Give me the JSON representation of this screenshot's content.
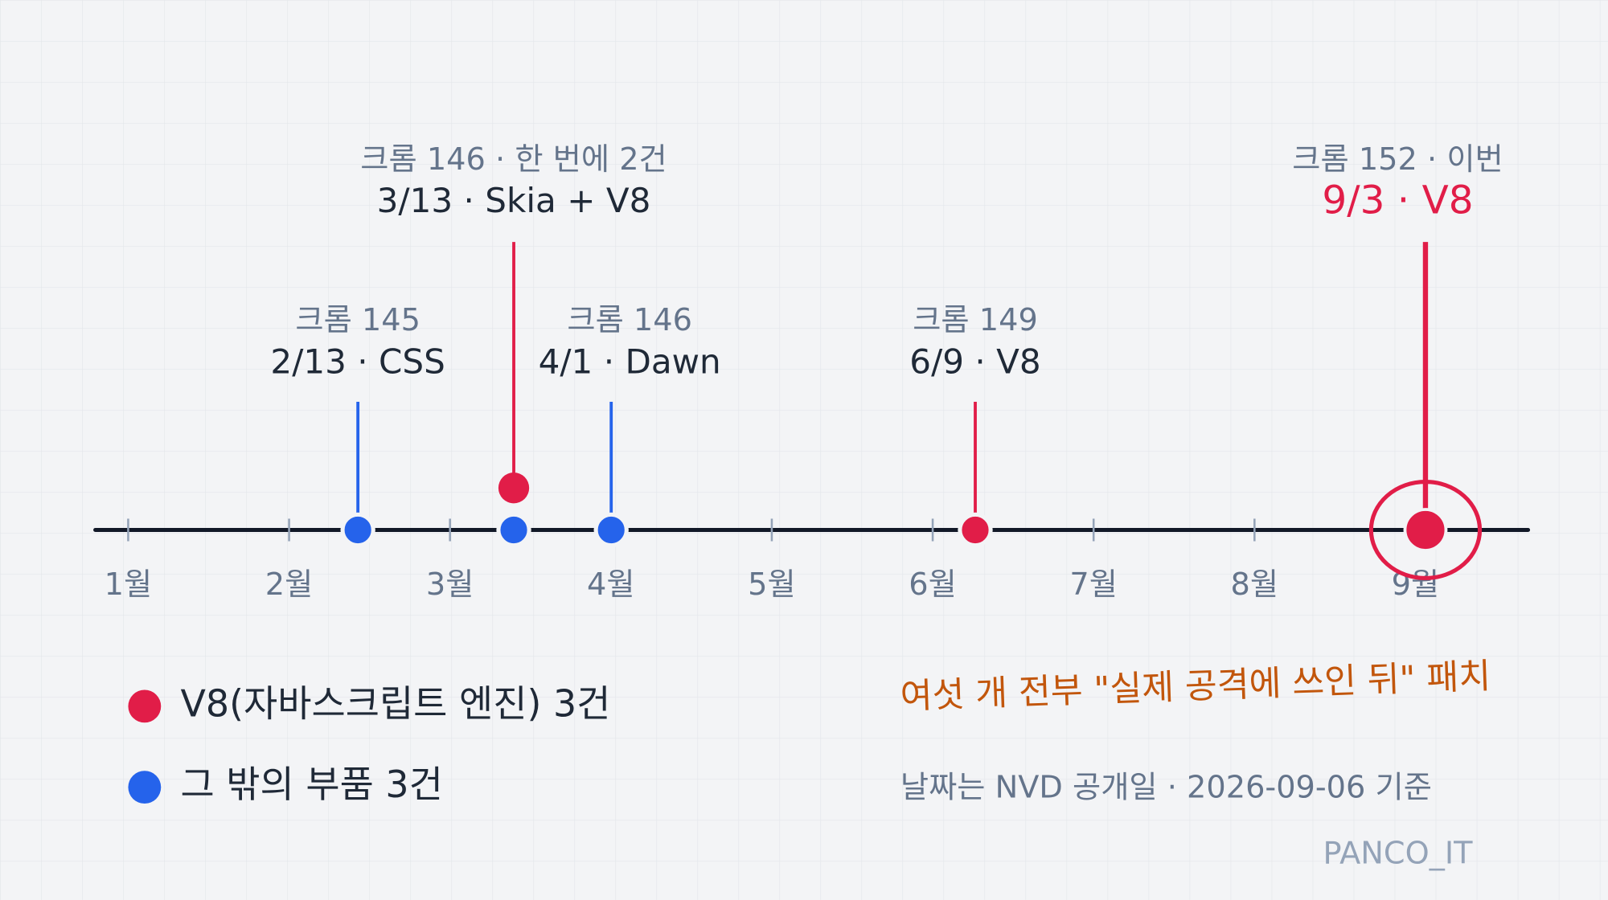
{
  "months": [
    "1월",
    "2월",
    "3월",
    "4월",
    "5월",
    "6월",
    "7월",
    "8월",
    "9월"
  ],
  "events": [
    {
      "version": "크롬 145",
      "label": "2/13 · CSS"
    },
    {
      "version": "크롬 146 · 한 번에 2건",
      "label": "3/13 · Skia + V8"
    },
    {
      "version": "크롬 146",
      "label": "4/1 · Dawn"
    },
    {
      "version": "크롬 149",
      "label": "6/9 · V8"
    },
    {
      "version": "크롬 152 · 이번",
      "label": "9/3 · V8"
    }
  ],
  "legend": [
    "V8(자바스크립트 엔진) 3건",
    "그 밖의 부품 3건"
  ],
  "note": "여섯 개 전부 \"실제 공격에 쓰인 뒤\" 패치",
  "source": "날짜는 NVD 공개일 · 2026-09-06 기준",
  "brand": "PANCO_IT"
}
